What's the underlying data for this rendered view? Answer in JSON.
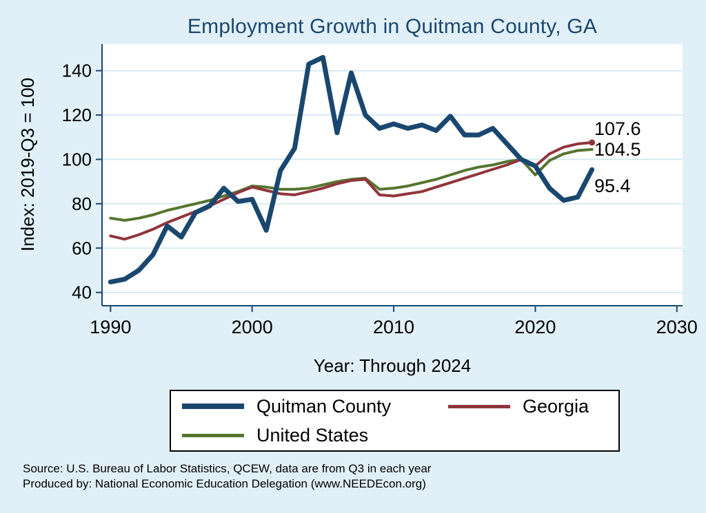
{
  "title": "Employment Growth in Quitman County, GA",
  "chart_data": {
    "type": "line",
    "title": "Employment Growth in Quitman County, GA",
    "xlabel": "Year: Through 2024",
    "ylabel": "Index: 2019-Q3 = 100",
    "grid": true,
    "legend_position": "bottom",
    "x_ticks": [
      1990,
      2000,
      2010,
      2020,
      2030
    ],
    "y_ticks": [
      40,
      60,
      80,
      100,
      120,
      140
    ],
    "xlim": [
      1989.4,
      2030.4
    ],
    "ylim": [
      34,
      152
    ],
    "x": [
      1990,
      1991,
      1992,
      1993,
      1994,
      1995,
      1996,
      1997,
      1998,
      1999,
      2000,
      2001,
      2002,
      2003,
      2004,
      2005,
      2006,
      2007,
      2008,
      2009,
      2010,
      2011,
      2012,
      2013,
      2014,
      2015,
      2016,
      2017,
      2018,
      2019,
      2020,
      2021,
      2022,
      2023,
      2024
    ],
    "series": [
      {
        "name": "United States",
        "color": "#55752f",
        "width": 4,
        "end_dot": false,
        "values": [
          73.5,
          72.5,
          73.5,
          75,
          77,
          78.5,
          80,
          81.5,
          83.5,
          85.5,
          88,
          87.5,
          86.5,
          86.5,
          87,
          88.5,
          90,
          91,
          91.5,
          86.5,
          87,
          88,
          89.5,
          91,
          93,
          95,
          96.5,
          97.5,
          99,
          100,
          93,
          99.5,
          102.5,
          104,
          104.5
        ]
      },
      {
        "name": "Georgia",
        "color": "#90353b",
        "width": 4,
        "end_dot": true,
        "values": [
          65.5,
          64,
          66,
          68.5,
          71.5,
          74,
          76.5,
          79,
          82,
          85,
          87.5,
          86,
          84.5,
          84,
          85.5,
          87,
          89,
          90.5,
          91,
          84,
          83.5,
          84.5,
          85.5,
          87.5,
          89.5,
          91.5,
          93.5,
          95.5,
          97.5,
          100,
          97,
          102.5,
          105.5,
          107,
          107.6
        ]
      },
      {
        "name": "Quitman County",
        "color": "#1a476f",
        "width": 7,
        "end_dot": false,
        "values": [
          44.7,
          46,
          50,
          57,
          70,
          65,
          76,
          79,
          87,
          81,
          82,
          68,
          95,
          105,
          143,
          146,
          112,
          139,
          120,
          114,
          116,
          114,
          115.5,
          113,
          119.5,
          111,
          111,
          114,
          107,
          100,
          97,
          87,
          81.5,
          83,
          95.4
        ]
      }
    ],
    "end_labels": [
      {
        "text": "107.6",
        "series": "Georgia"
      },
      {
        "text": "104.5",
        "series": "United States"
      },
      {
        "text": "95.4",
        "series": "Quitman County"
      }
    ],
    "colors": {
      "background": "#e1f0f8",
      "plot_background": "#ffffff",
      "gridline": "#cde6f2",
      "axis": "#1a476f",
      "title": "#1a476f"
    }
  },
  "legend": {
    "items": [
      {
        "label": "Quitman  County",
        "color": "#1a476f",
        "thick": true
      },
      {
        "label": "Georgia",
        "color": "#90353b",
        "thick": false
      },
      {
        "label": "United States",
        "color": "#55752f",
        "thick": false
      }
    ]
  },
  "footer": {
    "source": "Source: U.S. Bureau of Labor Statistics, QCEW, data are from Q3 in each year",
    "produced": "Produced by: National Economic Education Delegation (www.NEEDEcon.org)"
  }
}
